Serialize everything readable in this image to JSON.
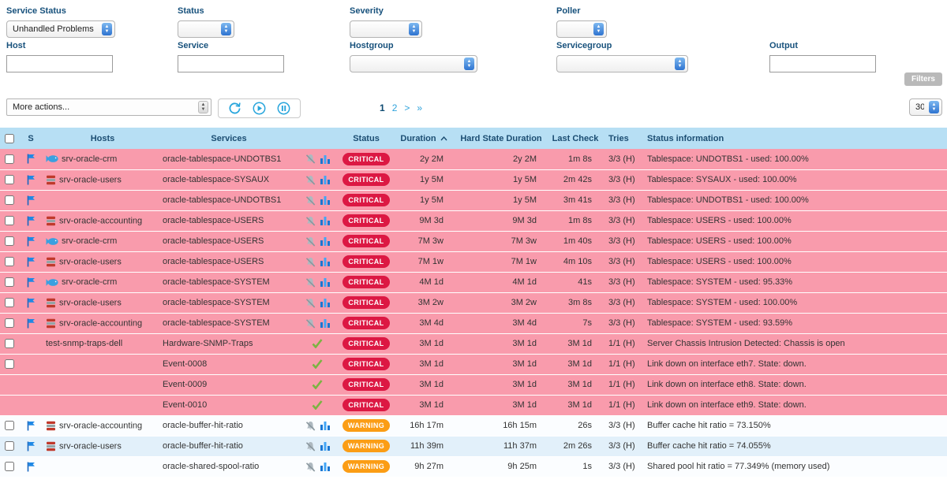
{
  "filters": {
    "service_status": {
      "label": "Service Status",
      "value": "Unhandled Problems"
    },
    "status": {
      "label": "Status",
      "value": ""
    },
    "severity": {
      "label": "Severity",
      "value": ""
    },
    "poller": {
      "label": "Poller",
      "value": ""
    },
    "host": {
      "label": "Host",
      "value": ""
    },
    "service": {
      "label": "Service",
      "value": ""
    },
    "hostgroup": {
      "label": "Hostgroup",
      "value": ""
    },
    "servicegroup": {
      "label": "Servicegroup",
      "value": ""
    },
    "output": {
      "label": "Output",
      "value": ""
    },
    "filters_button_label": "Filters"
  },
  "toolbar": {
    "more_actions_label": "More actions...",
    "pagination": {
      "current": "1",
      "page2": "2",
      "next": ">",
      "last": "»"
    },
    "page_size": "30"
  },
  "colors": {
    "critical_row": "#f99bac",
    "warning_row_alt": "#e2f0fa",
    "critical_badge": "#dc1843",
    "warning_badge": "#fb9d15",
    "header_bg": "#b7dff4",
    "label_blue": "#17517c",
    "link_blue": "#2fa3dc"
  },
  "table": {
    "columns": [
      "S",
      "Hosts",
      "Services",
      "Status",
      "Duration",
      "Hard State Duration",
      "Last Check",
      "Tries",
      "Status information"
    ],
    "sorted_column": "Duration",
    "sort_direction": "asc",
    "rows": [
      {
        "checkbox": true,
        "flag": true,
        "host_icon": "fish",
        "host": "srv-oracle-crm",
        "service": "oracle-tablespace-UNDOTBS1",
        "icons": [
          "notifications-off",
          "graph"
        ],
        "status": "CRITICAL",
        "duration": "2y 2M",
        "hard_state_duration": "2y 2M",
        "last_check": "1m 8s",
        "tries": "3/3 (H)",
        "status_information": "Tablespace: UNDOTBS1 - used: 100.00%",
        "row_style": "critical"
      },
      {
        "checkbox": true,
        "flag": true,
        "host_icon": "database",
        "host": "srv-oracle-users",
        "service": "oracle-tablespace-SYSAUX",
        "icons": [
          "notifications-off",
          "graph"
        ],
        "status": "CRITICAL",
        "duration": "1y 5M",
        "hard_state_duration": "1y 5M",
        "last_check": "2m 42s",
        "tries": "3/3 (H)",
        "status_information": "Tablespace: SYSAUX - used: 100.00%",
        "row_style": "critical"
      },
      {
        "checkbox": true,
        "flag": true,
        "host_icon": null,
        "host": "",
        "service": "oracle-tablespace-UNDOTBS1",
        "icons": [
          "notifications-off",
          "graph"
        ],
        "status": "CRITICAL",
        "duration": "1y 5M",
        "hard_state_duration": "1y 5M",
        "last_check": "3m 41s",
        "tries": "3/3 (H)",
        "status_information": "Tablespace: UNDOTBS1 - used: 100.00%",
        "row_style": "critical"
      },
      {
        "checkbox": true,
        "flag": true,
        "host_icon": "database",
        "host": "srv-oracle-accounting",
        "service": "oracle-tablespace-USERS",
        "icons": [
          "notifications-off",
          "graph"
        ],
        "status": "CRITICAL",
        "duration": "9M 3d",
        "hard_state_duration": "9M 3d",
        "last_check": "1m 8s",
        "tries": "3/3 (H)",
        "status_information": "Tablespace: USERS - used: 100.00%",
        "row_style": "critical"
      },
      {
        "checkbox": true,
        "flag": true,
        "host_icon": "fish",
        "host": "srv-oracle-crm",
        "service": "oracle-tablespace-USERS",
        "icons": [
          "notifications-off",
          "graph"
        ],
        "status": "CRITICAL",
        "duration": "7M 3w",
        "hard_state_duration": "7M 3w",
        "last_check": "1m 40s",
        "tries": "3/3 (H)",
        "status_information": "Tablespace: USERS - used: 100.00%",
        "row_style": "critical"
      },
      {
        "checkbox": true,
        "flag": true,
        "host_icon": "database",
        "host": "srv-oracle-users",
        "service": "oracle-tablespace-USERS",
        "icons": [
          "notifications-off",
          "graph"
        ],
        "status": "CRITICAL",
        "duration": "7M 1w",
        "hard_state_duration": "7M 1w",
        "last_check": "4m 10s",
        "tries": "3/3 (H)",
        "status_information": "Tablespace: USERS - used: 100.00%",
        "row_style": "critical"
      },
      {
        "checkbox": true,
        "flag": true,
        "host_icon": "fish",
        "host": "srv-oracle-crm",
        "service": "oracle-tablespace-SYSTEM",
        "icons": [
          "notifications-off",
          "graph"
        ],
        "status": "CRITICAL",
        "duration": "4M 1d",
        "hard_state_duration": "4M 1d",
        "last_check": "41s",
        "tries": "3/3 (H)",
        "status_information": "Tablespace: SYSTEM - used: 95.33%",
        "row_style": "critical"
      },
      {
        "checkbox": true,
        "flag": true,
        "host_icon": "database",
        "host": "srv-oracle-users",
        "service": "oracle-tablespace-SYSTEM",
        "icons": [
          "notifications-off",
          "graph"
        ],
        "status": "CRITICAL",
        "duration": "3M 2w",
        "hard_state_duration": "3M 2w",
        "last_check": "3m 8s",
        "tries": "3/3 (H)",
        "status_information": "Tablespace: SYSTEM - used: 100.00%",
        "row_style": "critical"
      },
      {
        "checkbox": true,
        "flag": true,
        "host_icon": "database",
        "host": "srv-oracle-accounting",
        "service": "oracle-tablespace-SYSTEM",
        "icons": [
          "notifications-off",
          "graph"
        ],
        "status": "CRITICAL",
        "duration": "3M 4d",
        "hard_state_duration": "3M 4d",
        "last_check": "7s",
        "tries": "3/3 (H)",
        "status_information": "Tablespace: SYSTEM - used: 93.59%",
        "row_style": "critical"
      },
      {
        "checkbox": true,
        "flag": false,
        "host_icon": null,
        "host": "test-snmp-traps-dell",
        "service": "Hardware-SNMP-Traps",
        "icons": [
          "passive-check"
        ],
        "status": "CRITICAL",
        "duration": "3M 1d",
        "hard_state_duration": "3M 1d",
        "last_check": "3M 1d",
        "tries": "1/1 (H)",
        "status_information": "Server Chassis Intrusion Detected: Chassis is open",
        "row_style": "critical"
      },
      {
        "checkbox": true,
        "flag": false,
        "host_icon": null,
        "host": "",
        "service": "Event-0008",
        "icons": [
          "passive-check"
        ],
        "status": "CRITICAL",
        "duration": "3M 1d",
        "hard_state_duration": "3M 1d",
        "last_check": "3M 1d",
        "tries": "1/1 (H)",
        "status_information": "Link down on interface eth7. State: down.",
        "row_style": "critical"
      },
      {
        "checkbox": false,
        "flag": false,
        "host_icon": null,
        "host": "",
        "service": "Event-0009",
        "icons": [
          "passive-check"
        ],
        "status": "CRITICAL",
        "duration": "3M 1d",
        "hard_state_duration": "3M 1d",
        "last_check": "3M 1d",
        "tries": "1/1 (H)",
        "status_information": "Link down on interface eth8. State: down.",
        "row_style": "critical"
      },
      {
        "checkbox": false,
        "flag": false,
        "host_icon": null,
        "host": "",
        "service": "Event-0010",
        "icons": [
          "passive-check"
        ],
        "status": "CRITICAL",
        "duration": "3M 1d",
        "hard_state_duration": "3M 1d",
        "last_check": "3M 1d",
        "tries": "1/1 (H)",
        "status_information": "Link down on interface eth9. State: down.",
        "row_style": "critical"
      },
      {
        "checkbox": true,
        "flag": true,
        "host_icon": "database",
        "host": "srv-oracle-accounting",
        "service": "oracle-buffer-hit-ratio",
        "icons": [
          "notifications-off",
          "graph"
        ],
        "status": "WARNING",
        "duration": "16h 17m",
        "hard_state_duration": "16h 15m",
        "last_check": "26s",
        "tries": "3/3 (H)",
        "status_information": "Buffer cache hit ratio = 73.150%",
        "row_style": "warning-a"
      },
      {
        "checkbox": true,
        "flag": true,
        "host_icon": "database",
        "host": "srv-oracle-users",
        "service": "oracle-buffer-hit-ratio",
        "icons": [
          "notifications-off",
          "graph"
        ],
        "status": "WARNING",
        "duration": "11h 39m",
        "hard_state_duration": "11h 37m",
        "last_check": "2m 26s",
        "tries": "3/3 (H)",
        "status_information": "Buffer cache hit ratio = 74.055%",
        "row_style": "warning-b"
      },
      {
        "checkbox": true,
        "flag": true,
        "host_icon": null,
        "host": "",
        "service": "oracle-shared-spool-ratio",
        "icons": [
          "notifications-off",
          "graph"
        ],
        "status": "WARNING",
        "duration": "9h 27m",
        "hard_state_duration": "9h 25m",
        "last_check": "1s",
        "tries": "3/3 (H)",
        "status_information": "Shared pool hit ratio = 77.349% (memory used)",
        "row_style": "warning-a"
      }
    ]
  }
}
